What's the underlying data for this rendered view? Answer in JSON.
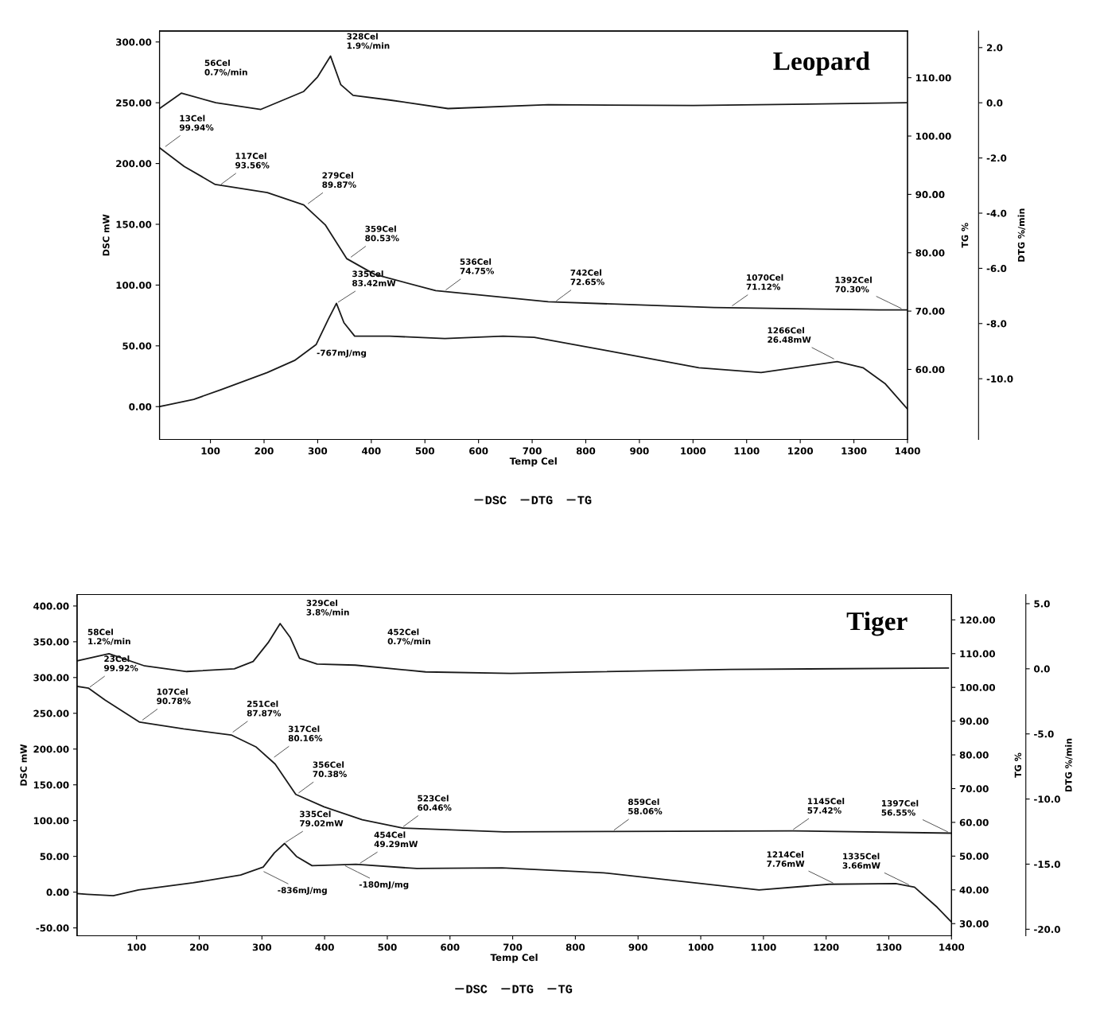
{
  "chart_data": [
    {
      "type": "line",
      "title": "Leopard",
      "xlabel": "Temp Cel",
      "ylabel": "DSC mW",
      "y2label": "TG %",
      "y3label": "DTG %/min",
      "xlim": [
        5,
        1400
      ],
      "xticks": [
        100,
        200,
        300,
        400,
        500,
        600,
        700,
        800,
        900,
        1000,
        1100,
        1200,
        1300,
        1400
      ],
      "ylim": [
        -27,
        309
      ],
      "yticks": [
        {
          "value": 0,
          "label": "0.00"
        },
        {
          "value": 50,
          "label": "50.00"
        },
        {
          "value": 100,
          "label": "100.00"
        },
        {
          "value": 150,
          "label": "150.00"
        },
        {
          "value": 200,
          "label": "200.00"
        },
        {
          "value": 250,
          "label": "250.00"
        },
        {
          "value": 300,
          "label": "300.00"
        }
      ],
      "y2lim": [
        48,
        118
      ],
      "y2ticks": [
        {
          "value": 60,
          "label": "60.00"
        },
        {
          "value": 70,
          "label": "70.00"
        },
        {
          "value": 80,
          "label": "80.00"
        },
        {
          "value": 90,
          "label": "90.00"
        },
        {
          "value": 100,
          "label": "100.00"
        },
        {
          "value": 110,
          "label": "110.00"
        }
      ],
      "y3lim": [
        -12.2,
        2.6
      ],
      "y3ticks": [
        {
          "value": -10,
          "label": "-10.0"
        },
        {
          "value": -8,
          "label": "-8.0"
        },
        {
          "value": -6,
          "label": "-6.0"
        },
        {
          "value": -4,
          "label": "-4.0"
        },
        {
          "value": -2,
          "label": "-2.0"
        },
        {
          "value": 0,
          "label": "0.0"
        },
        {
          "value": 2,
          "label": "2.0"
        }
      ],
      "legend": "bottom",
      "grid": false,
      "line_style": "solid",
      "series": [
        {
          "name": "DSC",
          "color": "#1a1a1a",
          "x": [
            5,
            69,
            120,
            206,
            257,
            297,
            320,
            335,
            349,
            369,
            434,
            537,
            646,
            704,
            840,
            1011,
            1127,
            1269,
            1317,
            1358,
            1400
          ],
          "values": [
            0,
            6,
            14,
            28,
            38,
            51,
            72,
            85,
            69,
            58,
            58,
            56,
            58,
            57,
            46,
            32,
            28,
            37,
            32,
            19,
            -2
          ]
        },
        {
          "name": "DTG",
          "color": "#1a1a1a",
          "axis": "y3",
          "x": [
            5,
            46,
            110,
            194,
            274,
            300,
            324,
            343,
            366,
            434,
            543,
            730,
            1000,
            1400
          ],
          "values": [
            -0.21,
            0.35,
            0.0,
            -0.24,
            0.41,
            0.94,
            1.69,
            0.66,
            0.27,
            0.1,
            -0.21,
            -0.07,
            -0.1,
            0.0
          ]
        },
        {
          "name": "TG",
          "color": "#1a1a1a",
          "axis": "y2",
          "x": [
            5,
            51,
            109,
            206,
            274,
            314,
            354,
            406,
            520,
            730,
            1039,
            1347,
            1400
          ],
          "values": [
            98.0,
            94.8,
            91.7,
            90.3,
            88.2,
            84.8,
            79.0,
            76.3,
            73.5,
            71.6,
            70.6,
            70.2,
            70.2
          ]
        }
      ],
      "annotations": [
        "56Cel\n0.7%/min",
        "328Cel\n1.9%/min",
        {
          "text": "13Cel\n99.94%",
          "x": 13,
          "y": 213
        },
        {
          "text": "117Cel\n93.56%",
          "x": 117,
          "y": 182
        },
        {
          "text": "279Cel\n89.87%",
          "x": 279,
          "y": 166
        },
        {
          "text": "359Cel\n80.53%",
          "x": 359,
          "y": 122
        },
        {
          "text": "536Cel\n74.75%",
          "x": 536,
          "y": 95
        },
        {
          "text": "742Cel\n72.65%",
          "x": 742,
          "y": 86
        },
        {
          "text": "1070Cel\n71.12%",
          "x": 1070,
          "y": 82
        },
        {
          "text": "1392Cel\n70.30%",
          "x": 1392,
          "y": 80
        },
        {
          "text": "335Cel\n83.42mW",
          "x": 335,
          "y": 85
        },
        "-767mJ/mg",
        {
          "text": "1266Cel\n26.48mW",
          "x": 1266,
          "y": 38.5
        }
      ]
    },
    {
      "type": "line",
      "title": "Tiger",
      "xlabel": "Temp Cel",
      "ylabel": "DSC mW",
      "y2label": "TG %",
      "y3label": "DTG %/min",
      "xlim": [
        5,
        1400
      ],
      "xticks": [
        100,
        200,
        300,
        400,
        500,
        600,
        700,
        800,
        900,
        1000,
        1100,
        1200,
        1300,
        1400
      ],
      "ylim": [
        -61,
        416
      ],
      "yticks": [
        {
          "value": -50,
          "label": "-50.00"
        },
        {
          "value": 0,
          "label": "0.00"
        },
        {
          "value": 50,
          "label": "50.00"
        },
        {
          "value": 100,
          "label": "100.00"
        },
        {
          "value": 150,
          "label": "150.00"
        },
        {
          "value": 200,
          "label": "200.00"
        },
        {
          "value": 250,
          "label": "250.00"
        },
        {
          "value": 300,
          "label": "300.00"
        },
        {
          "value": 350,
          "label": "350.00"
        },
        {
          "value": 400,
          "label": "400.00"
        }
      ],
      "y2lim": [
        26.4,
        127.5
      ],
      "y2ticks": [
        {
          "value": 30,
          "label": "30.00"
        },
        {
          "value": 40,
          "label": "40.00"
        },
        {
          "value": 50,
          "label": "50.00"
        },
        {
          "value": 60,
          "label": "60.00"
        },
        {
          "value": 70,
          "label": "70.00"
        },
        {
          "value": 80,
          "label": "80.00"
        },
        {
          "value": 90,
          "label": "90.00"
        },
        {
          "value": 100,
          "label": "100.00"
        },
        {
          "value": 110,
          "label": "110.00"
        },
        {
          "value": 120,
          "label": "120.00"
        }
      ],
      "y3lim": [
        -20.5,
        5.7
      ],
      "y3ticks": [
        {
          "value": -20,
          "label": "-20.0"
        },
        {
          "value": -15,
          "label": "-15.0"
        },
        {
          "value": -10,
          "label": "-10.0"
        },
        {
          "value": -5,
          "label": "-5.0"
        },
        {
          "value": 0,
          "label": "0.0"
        },
        {
          "value": 5,
          "label": "5.0"
        }
      ],
      "legend": "bottom",
      "grid": false,
      "line_style": "solid",
      "series": [
        {
          "name": "DSC",
          "color": "#1a1a1a",
          "x": [
            5,
            21,
            63,
            103,
            190,
            266,
            302,
            320,
            336,
            355,
            380,
            450,
            547,
            683,
            845,
            1093,
            1205,
            1311,
            1341,
            1377,
            1399
          ],
          "values": [
            -2,
            -3,
            -5,
            3,
            13,
            24,
            35,
            55,
            68,
            50,
            37,
            39,
            33,
            34,
            27,
            3,
            11,
            12,
            7,
            -21,
            -41
          ]
        },
        {
          "name": "DTG",
          "color": "#1a1a1a",
          "axis": "y3",
          "x": [
            5,
            56,
            113,
            180,
            256,
            286,
            310,
            329,
            345,
            360,
            388,
            449,
            561,
            697,
            1047,
            1395
          ],
          "values": [
            0.61,
            1.16,
            0.22,
            -0.21,
            0.0,
            0.56,
            2.01,
            3.47,
            2.42,
            0.81,
            0.36,
            0.28,
            -0.24,
            -0.35,
            -0.05,
            0.06
          ]
        },
        {
          "name": "TG",
          "color": "#1a1a1a",
          "axis": "y2",
          "x": [
            5,
            23,
            50,
            105,
            175,
            251,
            291,
            321,
            354,
            399,
            460,
            525,
            686,
            861,
            1147,
            1400
          ],
          "values": [
            100.3,
            99.8,
            96.2,
            89.7,
            87.7,
            85.9,
            82.3,
            77.3,
            68.3,
            64.6,
            60.8,
            58.3,
            57.2,
            57.3,
            57.5,
            56.8
          ]
        }
      ],
      "annotations": [
        "58Cel\n1.2%/min",
        "329Cel\n3.8%/min",
        "452Cel\n0.7%/min",
        {
          "text": "23Cel\n99.92%",
          "x": 23,
          "y": 285
        },
        {
          "text": "107Cel\n90.78%",
          "x": 107,
          "y": 239
        },
        {
          "text": "251Cel\n87.87%",
          "x": 251,
          "y": 222
        },
        {
          "text": "317Cel\n80.16%",
          "x": 317,
          "y": 187
        },
        {
          "text": "356Cel\n70.38%",
          "x": 356,
          "y": 137
        },
        {
          "text": "523Cel\n60.46%",
          "x": 523,
          "y": 90
        },
        {
          "text": "859Cel\n58.06%",
          "x": 859,
          "y": 85
        },
        {
          "text": "1145Cel\n57.42%",
          "x": 1145,
          "y": 86
        },
        {
          "text": "1397Cel\n56.55%",
          "x": 1397,
          "y": 83
        },
        {
          "text": "335Cel\n79.02mW",
          "x": 335,
          "y": 68
        },
        {
          "text": "454Cel\n49.29mW",
          "x": 454,
          "y": 39
        },
        {
          "text": "-836mJ/mg",
          "x": 300,
          "y": 30
        },
        {
          "text": "-180mJ/mg",
          "x": 430,
          "y": 38
        },
        {
          "text": "1214Cel\n7.76mW",
          "x": 1214,
          "y": 11.5
        },
        {
          "text": "1335Cel\n3.66mW",
          "x": 1335,
          "y": 9
        }
      ]
    }
  ]
}
